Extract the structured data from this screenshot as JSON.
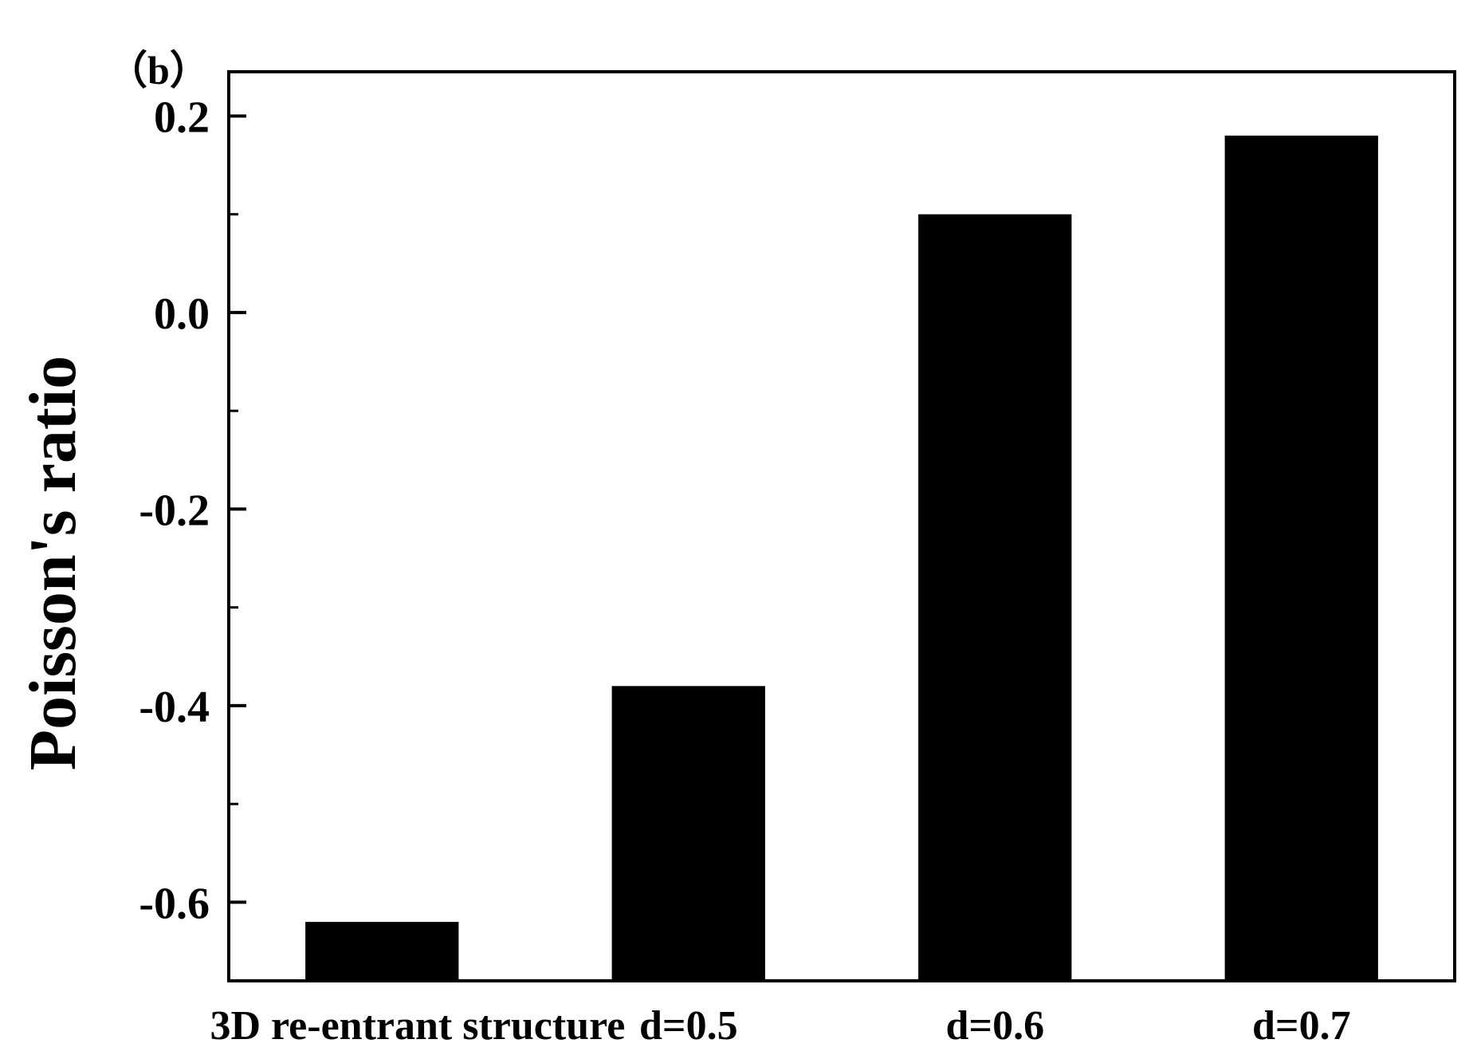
{
  "panel_label": "（b）",
  "chart_data": {
    "type": "bar",
    "categories": [
      "3D re-entrant structure",
      "d=0.5",
      "d=0.6",
      "d=0.7"
    ],
    "values": [
      -0.62,
      -0.38,
      0.1,
      0.18
    ],
    "title": "",
    "xlabel": "",
    "ylabel": "Poisson's ratio",
    "ylim": [
      -0.68,
      0.245
    ],
    "yticks": [
      0.2,
      0.0,
      -0.2,
      -0.4,
      -0.6
    ],
    "ytick_labels": [
      "0.2",
      "0.0",
      "-0.2",
      "-0.4",
      "-0.6"
    ],
    "minor_yticks": [
      0.1,
      -0.1,
      -0.3,
      -0.5
    ],
    "grid": false,
    "bar_color": "#000000"
  }
}
